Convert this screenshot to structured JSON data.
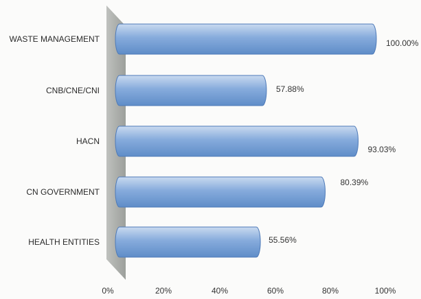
{
  "chart_data": {
    "type": "bar",
    "orientation": "horizontal",
    "categories": [
      "WASTE MANAGEMENT",
      "CNB/CNE/CNI",
      "HACN",
      "CN GOVERNMENT",
      "HEALTH ENTITIES"
    ],
    "values": [
      100.0,
      57.88,
      93.03,
      80.39,
      55.56
    ],
    "value_labels": [
      "100.00%",
      "57.88%",
      "93.03%",
      "80.39%",
      "55.56%"
    ],
    "xlim": [
      0,
      100
    ],
    "xticks": [
      "0%",
      "20%",
      "40%",
      "60%",
      "80%",
      "100%"
    ],
    "grid": false,
    "bar_color": "#7ba3d8",
    "bar_edge_color": "#4e7ab8",
    "wall_color": "#a9aca8"
  }
}
